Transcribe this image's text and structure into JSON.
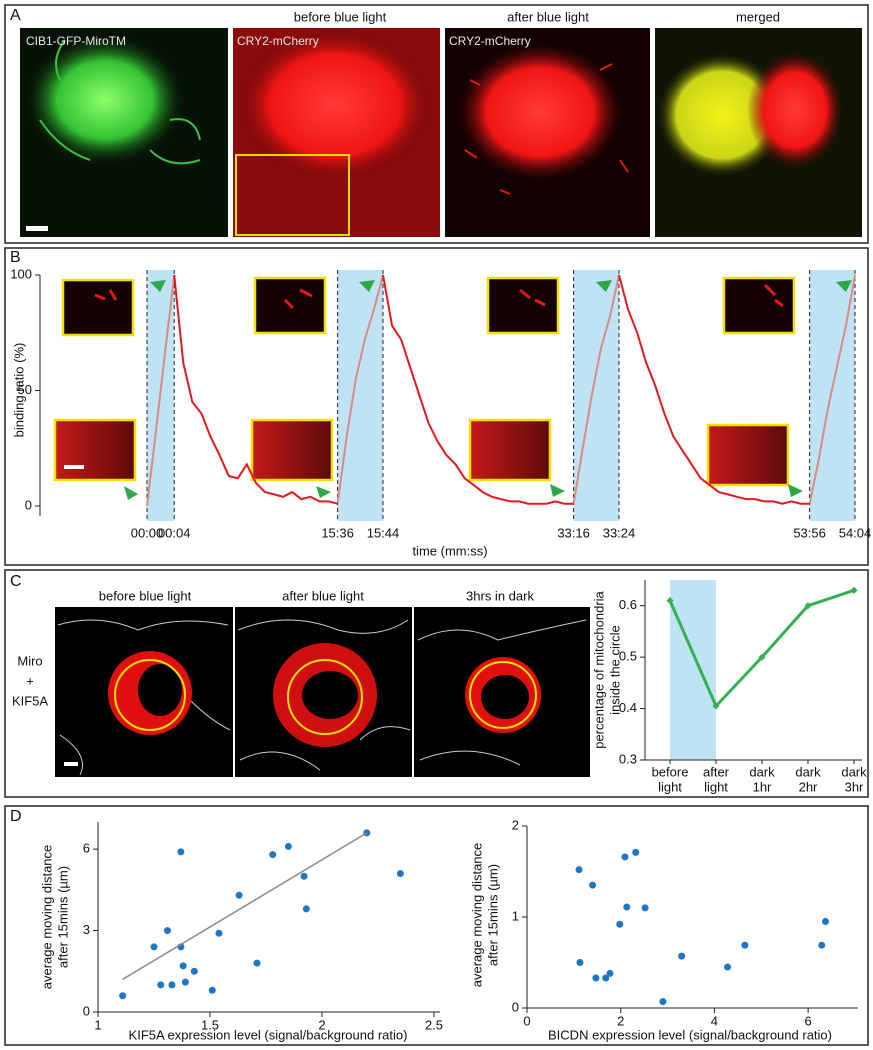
{
  "panel_labels": [
    "A",
    "B",
    "C",
    "D"
  ],
  "panel_a": {
    "headers": [
      "before blue light",
      "after blue light",
      "merged"
    ],
    "image_labels": [
      "CIB1-GFP-MiroTM",
      "CRY2-mCherry",
      "CRY2-mCherry"
    ]
  },
  "panel_c": {
    "headers": [
      "before blue light",
      "after blue light",
      "3hrs in dark"
    ],
    "row_label": [
      "Miro",
      "+",
      "KIF5A"
    ]
  },
  "chart_data": [
    {
      "type": "line",
      "xlabel": "time (mm:ss)",
      "ylabel": "binding ratio (%)",
      "categories": [
        "00:00",
        null,
        null,
        "00:04",
        null,
        null,
        null,
        null,
        null,
        null,
        null,
        null,
        null,
        null,
        null,
        null,
        null,
        null,
        null,
        null,
        null,
        "15:36",
        null,
        null,
        null,
        null,
        "15:44",
        null,
        null,
        null,
        null,
        null,
        null,
        null,
        null,
        null,
        null,
        null,
        null,
        null,
        null,
        null,
        null,
        null,
        null,
        null,
        null,
        "33:16",
        null,
        null,
        null,
        null,
        "33:24",
        null,
        null,
        null,
        null,
        null,
        null,
        null,
        null,
        null,
        null,
        null,
        null,
        null,
        null,
        null,
        null,
        null,
        null,
        null,
        null,
        "53:56",
        null,
        null,
        null,
        null,
        "54:04"
      ],
      "series": [
        {
          "color": "#d98a85",
          "values": [
            0,
            33,
            67,
            100,
            null,
            null,
            null,
            null,
            null,
            null,
            null,
            null,
            null,
            null,
            null,
            null,
            null,
            null,
            null,
            null,
            null,
            1,
            30,
            55,
            72,
            85,
            100,
            null,
            null,
            null,
            null,
            null,
            null,
            null,
            null,
            null,
            null,
            null,
            null,
            null,
            null,
            null,
            null,
            null,
            null,
            null,
            null,
            1,
            25,
            48,
            68,
            82,
            100,
            null,
            null,
            null,
            null,
            null,
            null,
            null,
            null,
            null,
            null,
            null,
            null,
            null,
            null,
            null,
            null,
            null,
            null,
            null,
            null,
            1,
            20,
            42,
            60,
            78,
            100
          ]
        },
        {
          "color": "#e31a1c",
          "values": [
            null,
            null,
            null,
            100,
            62,
            45,
            40,
            30,
            22,
            13,
            12,
            18,
            10,
            6,
            5,
            4,
            6,
            3,
            4,
            2,
            2,
            1,
            null,
            null,
            null,
            null,
            100,
            78,
            72,
            60,
            48,
            36,
            28,
            22,
            18,
            12,
            9,
            6,
            4,
            3,
            2,
            2,
            1,
            1,
            1,
            2,
            1,
            1,
            null,
            null,
            null,
            null,
            100,
            85,
            75,
            62,
            52,
            40,
            30,
            24,
            18,
            12,
            9,
            6,
            5,
            4,
            3,
            3,
            2,
            2,
            1,
            2,
            1,
            1,
            null,
            null,
            null,
            null,
            null
          ]
        }
      ],
      "ylim": [
        0,
        100
      ],
      "yticks": [
        0,
        50,
        100
      ]
    },
    {
      "type": "line",
      "ylabel": [
        "percentage of mitochondria",
        "inside the circle"
      ],
      "categories": [
        [
          "before",
          "light"
        ],
        [
          "after",
          "light"
        ],
        [
          "dark",
          "1hr"
        ],
        [
          "dark",
          "2hr"
        ],
        [
          "dark",
          "3hr"
        ]
      ],
      "series": [
        {
          "color": "#33b04f",
          "values": [
            0.61,
            0.405,
            0.5,
            0.6,
            0.63
          ]
        }
      ],
      "ylim": [
        0.3,
        0.65
      ],
      "yticks": [
        0.3,
        0.4,
        0.5,
        0.6
      ]
    },
    {
      "type": "scatter",
      "xlabel": "KIF5A expression level (signal/background ratio)",
      "ylabel": [
        "average moving distance",
        "after 15mins (µm)"
      ],
      "series": [
        {
          "color": "#1f77c4",
          "x": [
            1.11,
            1.25,
            1.28,
            1.31,
            1.33,
            1.37,
            1.37,
            1.38,
            1.39,
            1.43,
            1.51,
            1.54,
            1.63,
            1.71,
            1.78,
            1.85,
            1.92,
            1.93,
            2.2,
            2.35
          ],
          "values": [
            0.6,
            2.4,
            1.0,
            3.0,
            1.0,
            5.9,
            2.4,
            1.7,
            1.1,
            1.5,
            0.8,
            2.9,
            4.3,
            1.8,
            5.8,
            6.1,
            5.0,
            3.8,
            6.6,
            5.1
          ]
        },
        {
          "type": "line",
          "color": "#888888",
          "x": [
            1.11,
            2.2
          ],
          "values": [
            1.2,
            6.6
          ]
        }
      ],
      "xlim": [
        1,
        2.5
      ],
      "xticks": [
        1,
        1.5,
        2,
        2.5
      ],
      "ylim": [
        0,
        7
      ],
      "yticks": [
        0,
        3,
        6
      ]
    },
    {
      "type": "scatter",
      "xlabel": "BICDN expression level (signal/background ratio)",
      "ylabel": [
        "average moving distance",
        "after 15mins (µm)"
      ],
      "series": [
        {
          "color": "#1f77c4",
          "x": [
            1.11,
            1.13,
            1.4,
            1.47,
            1.68,
            1.77,
            1.98,
            2.09,
            2.13,
            2.32,
            2.52,
            2.9,
            3.3,
            4.28,
            4.65,
            6.29,
            6.37
          ],
          "values": [
            1.52,
            0.5,
            1.35,
            0.33,
            0.33,
            0.38,
            0.92,
            1.66,
            1.11,
            1.71,
            1.1,
            0.07,
            0.57,
            0.45,
            0.69,
            0.69,
            0.95
          ]
        }
      ],
      "xlim": [
        0,
        7
      ],
      "xticks": [
        0,
        2,
        4,
        6
      ],
      "ylim": [
        0,
        2
      ],
      "yticks": [
        0,
        1,
        2
      ]
    }
  ]
}
